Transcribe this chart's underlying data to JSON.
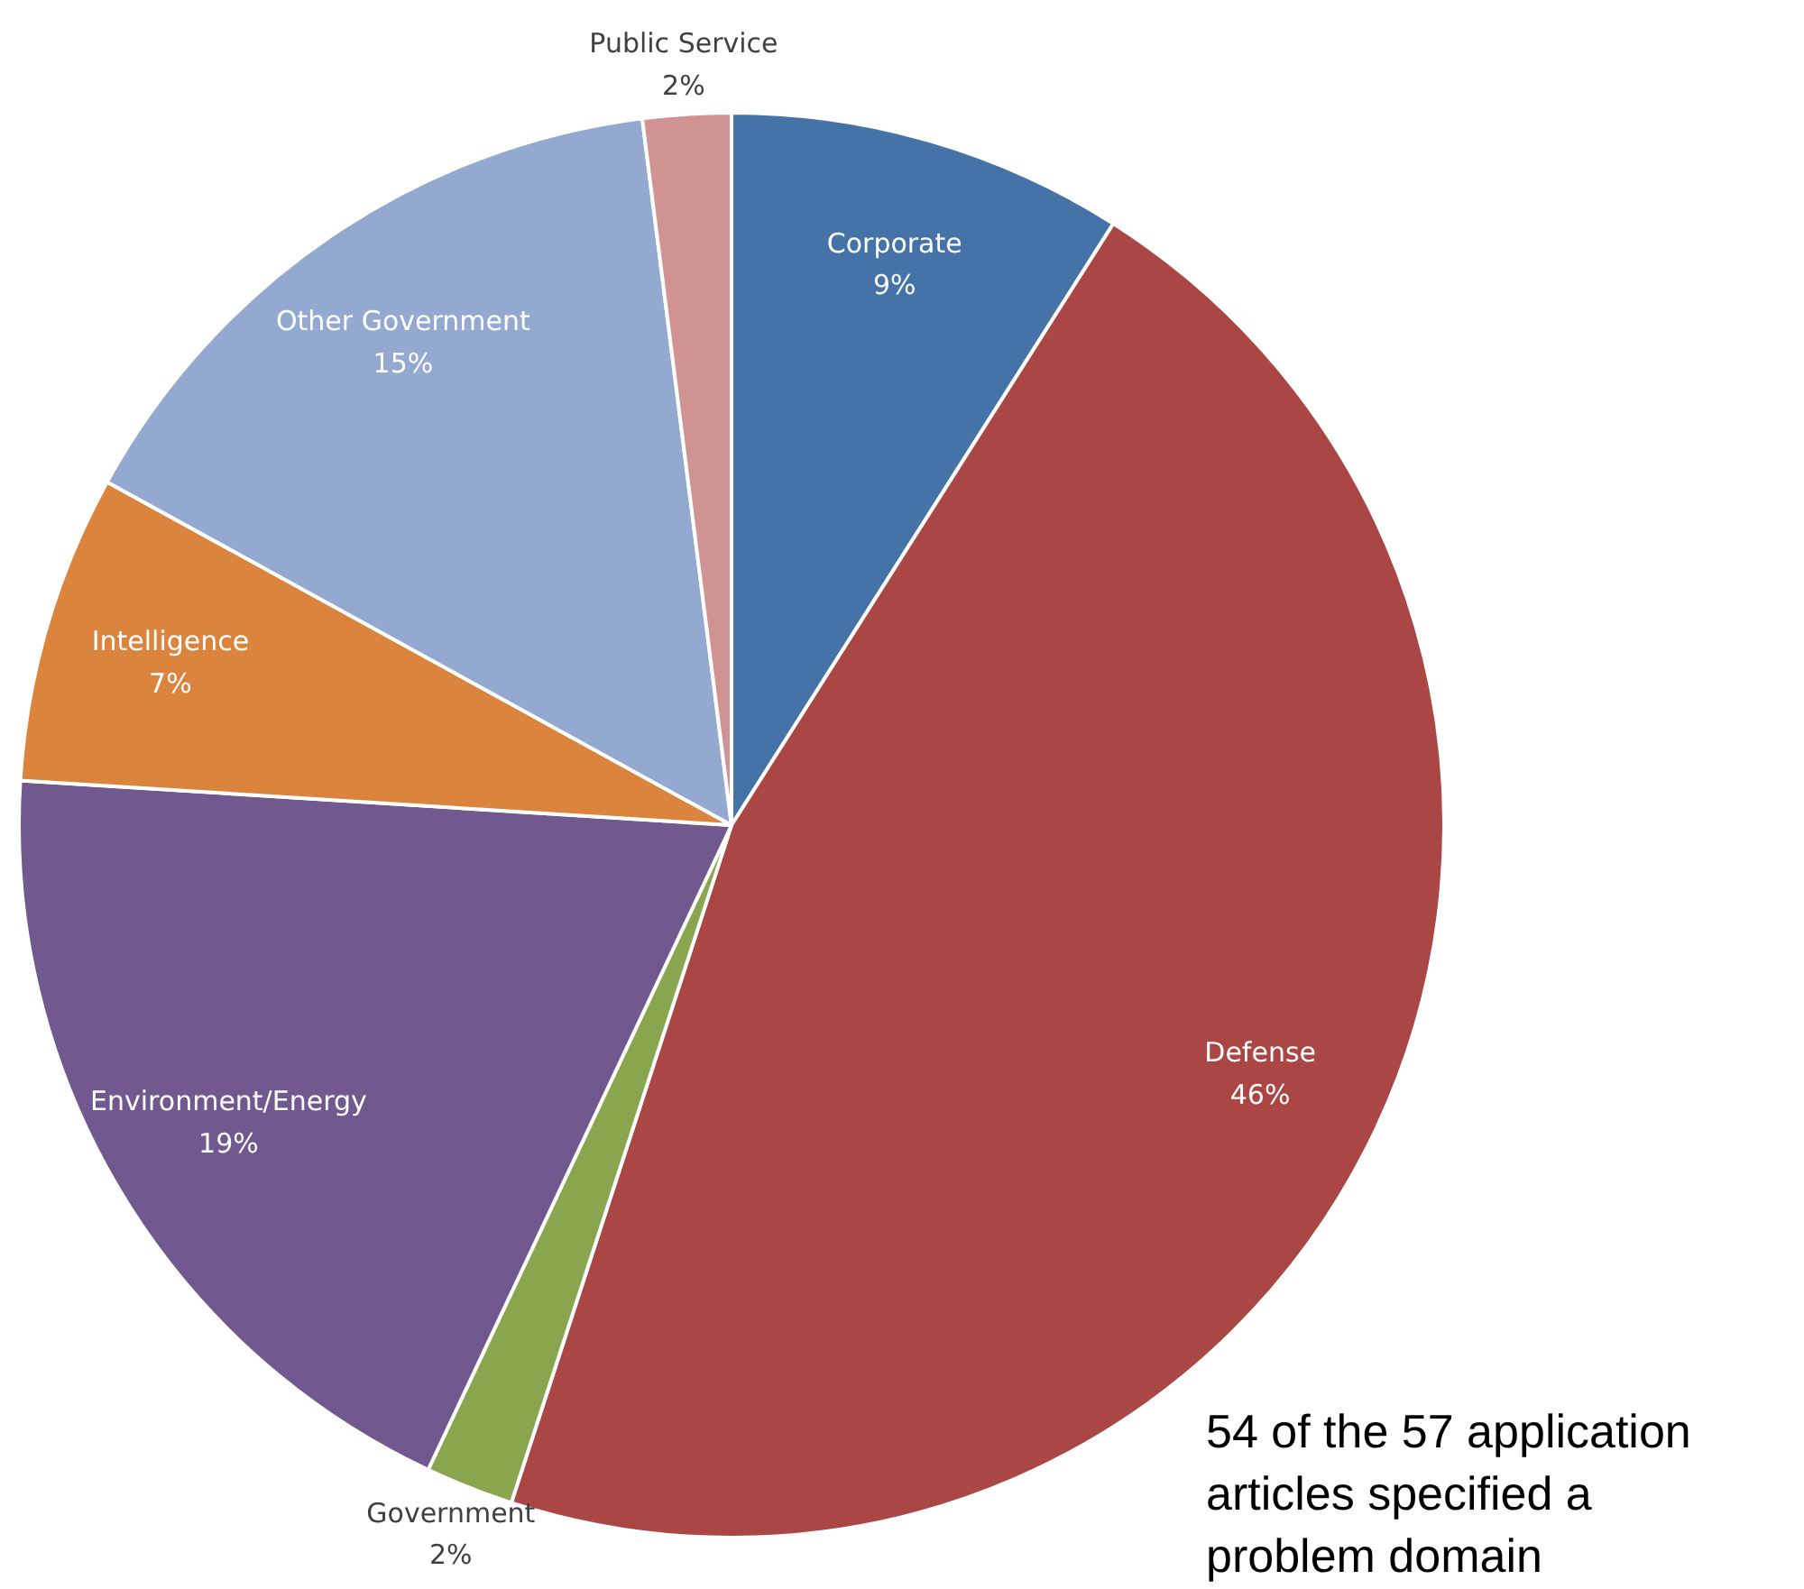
{
  "chart_data": {
    "type": "pie",
    "categories": [
      "Corporate",
      "Defense",
      "Government",
      "Environment/Energy",
      "Intelligence",
      "Other Government",
      "Public Service"
    ],
    "values": [
      9,
      46,
      2,
      19,
      7,
      15,
      2
    ],
    "colors": [
      "#4572a7",
      "#aa4643",
      "#89a54e",
      "#71588f",
      "#db843d",
      "#93a9cf",
      "#d19392"
    ],
    "value_labels": [
      "9%",
      "46%",
      "2%",
      "19%",
      "7%",
      "15%",
      "2%"
    ],
    "annotations": [
      "54 of the 57 application articles specified a problem domain"
    ]
  }
}
